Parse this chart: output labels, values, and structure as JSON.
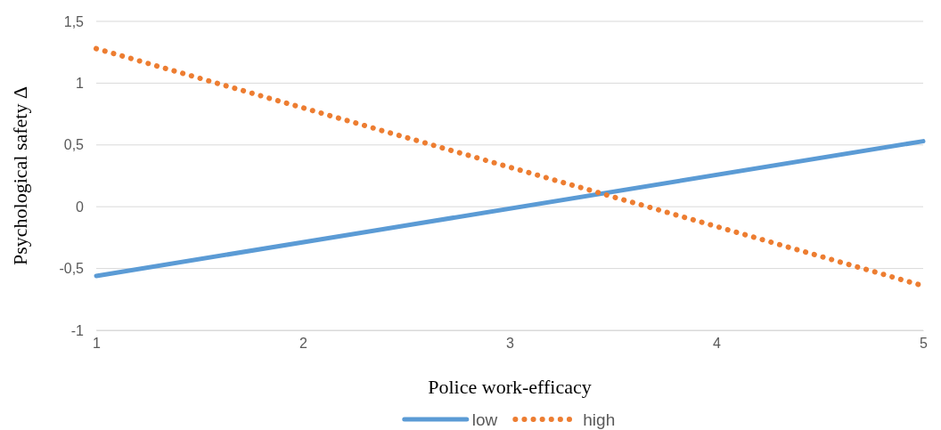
{
  "chart_data": {
    "type": "line",
    "xlabel": "Police work-efficacy",
    "ylabel": "Psychological safety Δ",
    "x": [
      1,
      5
    ],
    "series": [
      {
        "name": "low",
        "color": "#5b9bd5",
        "values": [
          -0.56,
          0.53
        ],
        "line_style": "solid"
      },
      {
        "name": "high",
        "color": "#ed7d31",
        "values": [
          1.28,
          -0.64
        ],
        "line_style": "dotted"
      }
    ],
    "xlim": [
      1,
      5
    ],
    "xticks": [
      1,
      2,
      3,
      4,
      5
    ],
    "ylim": [
      -1,
      1.5
    ],
    "yticks": [
      -1,
      {
        "value": -0.5,
        "label": "-0,5"
      },
      0,
      {
        "value": 0.5,
        "label": "0,5"
      },
      1,
      {
        "value": 1.5,
        "label": "1,5"
      }
    ],
    "grid": "y",
    "legend": "bottom",
    "marker": "none"
  }
}
